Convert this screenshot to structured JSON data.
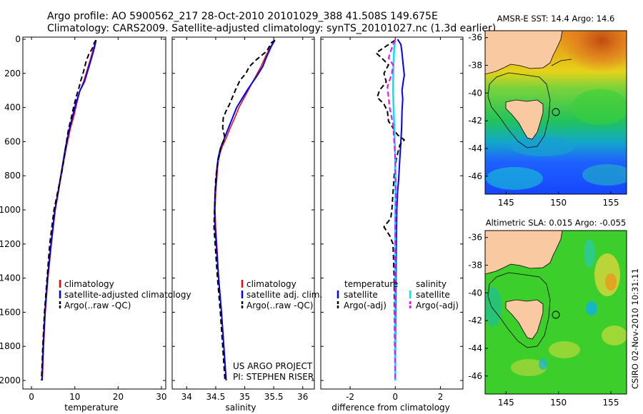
{
  "header": {
    "line1": "Argo profile: AO 5900562_217 28-Oct-2010 20101029_388 41.508S 149.675E",
    "line2": "Climatology: CARS2009. Satellite-adjusted climatology: synTS_20101027.nc (1.3d earlier)"
  },
  "colors": {
    "climatology": "#ff0000",
    "satellite": "#0000ff",
    "argo": "#000000",
    "sal_satellite": "#00e5ff",
    "sal_argo": "#ff00ff",
    "land": "#f9c9a2"
  },
  "chart_data": [
    {
      "type": "line",
      "name": "temperature-panel",
      "xlabel": "temperature",
      "ylabel": "",
      "xlim": [
        -2,
        31
      ],
      "ylim": [
        2050,
        0
      ],
      "xticks": [
        "0",
        "10",
        "20",
        "30"
      ],
      "yticks": [
        "0",
        "200",
        "400",
        "600",
        "800",
        "1000",
        "1200",
        "1400",
        "1600",
        "1800",
        "2000"
      ],
      "legend": [
        "climatology",
        "satellite-adjusted climatology",
        "Argo(..raw -QC)"
      ],
      "series": [
        {
          "name": "climatology",
          "points": [
            [
              14.8,
              5
            ],
            [
              14.6,
              30
            ],
            [
              14.0,
              80
            ],
            [
              13.2,
              150
            ],
            [
              12.6,
              200
            ],
            [
              12.0,
              250
            ],
            [
              11.2,
              300
            ],
            [
              10.4,
              380
            ],
            [
              9.8,
              450
            ],
            [
              9.0,
              520
            ],
            [
              8.0,
              640
            ],
            [
              7.0,
              780
            ],
            [
              6.2,
              900
            ],
            [
              5.5,
              1000
            ],
            [
              4.6,
              1200
            ],
            [
              3.8,
              1400
            ],
            [
              3.2,
              1600
            ],
            [
              2.8,
              1800
            ],
            [
              2.5,
              2000
            ]
          ]
        },
        {
          "name": "satellite",
          "points": [
            [
              14.9,
              5
            ],
            [
              14.7,
              30
            ],
            [
              14.2,
              80
            ],
            [
              13.4,
              150
            ],
            [
              12.8,
              200
            ],
            [
              12.2,
              250
            ],
            [
              11.2,
              300
            ],
            [
              10.2,
              380
            ],
            [
              9.5,
              450
            ],
            [
              8.8,
              520
            ],
            [
              7.8,
              640
            ],
            [
              6.9,
              780
            ],
            [
              6.1,
              900
            ],
            [
              5.4,
              1000
            ],
            [
              4.5,
              1200
            ],
            [
              3.7,
              1400
            ],
            [
              3.1,
              1600
            ],
            [
              2.7,
              1800
            ],
            [
              2.4,
              2000
            ]
          ]
        },
        {
          "name": "argo",
          "points": [
            [
              14.9,
              5
            ],
            [
              14.5,
              20
            ],
            [
              14.3,
              40
            ],
            [
              13.9,
              60
            ],
            [
              13.2,
              90
            ],
            [
              12.6,
              130
            ],
            [
              12.2,
              170
            ],
            [
              11.8,
              210
            ],
            [
              11.4,
              240
            ],
            [
              11.0,
              280
            ],
            [
              10.3,
              340
            ],
            [
              9.7,
              400
            ],
            [
              9.1,
              470
            ],
            [
              8.6,
              520
            ],
            [
              8.2,
              580
            ],
            [
              7.9,
              640
            ],
            [
              7.0,
              780
            ],
            [
              6.0,
              900
            ],
            [
              5.2,
              1000
            ],
            [
              4.2,
              1200
            ],
            [
              3.6,
              1400
            ],
            [
              3.0,
              1600
            ],
            [
              2.6,
              1800
            ],
            [
              2.3,
              2000
            ]
          ]
        }
      ]
    },
    {
      "type": "line",
      "name": "salinity-panel",
      "xlabel": "salinity",
      "xlim": [
        33.75,
        36.2
      ],
      "ylim": [
        2050,
        0
      ],
      "xticks": [
        "34",
        "34.5",
        "35",
        "35.5",
        "36"
      ],
      "legend": [
        "climatology",
        "satellite adj. clim.",
        "Argo(..raw -QC)"
      ],
      "annotation": [
        "US ARGO PROJECT",
        "PI: STEPHEN RISER"
      ],
      "series": [
        {
          "name": "climatology",
          "points": [
            [
              35.52,
              5
            ],
            [
              35.45,
              40
            ],
            [
              35.36,
              100
            ],
            [
              35.28,
              160
            ],
            [
              35.2,
              210
            ],
            [
              35.12,
              260
            ],
            [
              35.06,
              300
            ],
            [
              34.98,
              350
            ],
            [
              34.9,
              400
            ],
            [
              34.83,
              460
            ],
            [
              34.75,
              520
            ],
            [
              34.68,
              580
            ],
            [
              34.6,
              640
            ],
            [
              34.55,
              700
            ],
            [
              34.53,
              760
            ],
            [
              34.52,
              820
            ],
            [
              34.5,
              900
            ],
            [
              34.49,
              1000
            ],
            [
              34.5,
              1100
            ],
            [
              34.52,
              1200
            ],
            [
              34.55,
              1400
            ],
            [
              34.6,
              1600
            ],
            [
              34.64,
              1800
            ],
            [
              34.68,
              2000
            ]
          ]
        },
        {
          "name": "satellite",
          "points": [
            [
              35.52,
              5
            ],
            [
              35.46,
              40
            ],
            [
              35.38,
              100
            ],
            [
              35.31,
              160
            ],
            [
              35.22,
              210
            ],
            [
              35.12,
              260
            ],
            [
              35.04,
              300
            ],
            [
              34.95,
              350
            ],
            [
              34.86,
              400
            ],
            [
              34.79,
              460
            ],
            [
              34.72,
              520
            ],
            [
              34.65,
              580
            ],
            [
              34.58,
              640
            ],
            [
              34.54,
              700
            ],
            [
              34.52,
              760
            ],
            [
              34.51,
              820
            ],
            [
              34.49,
              900
            ],
            [
              34.48,
              1000
            ],
            [
              34.49,
              1100
            ],
            [
              34.51,
              1200
            ],
            [
              34.55,
              1400
            ],
            [
              34.6,
              1600
            ],
            [
              34.64,
              1800
            ],
            [
              34.68,
              2000
            ]
          ]
        },
        {
          "name": "argo",
          "points": [
            [
              35.52,
              5
            ],
            [
              35.46,
              20
            ],
            [
              35.42,
              45
            ],
            [
              35.38,
              70
            ],
            [
              35.2,
              120
            ],
            [
              35.08,
              160
            ],
            [
              35.02,
              200
            ],
            [
              34.92,
              240
            ],
            [
              34.85,
              290
            ],
            [
              34.8,
              330
            ],
            [
              34.74,
              380
            ],
            [
              34.68,
              420
            ],
            [
              34.63,
              460
            ],
            [
              34.62,
              520
            ],
            [
              34.66,
              580
            ],
            [
              34.6,
              620
            ],
            [
              34.55,
              700
            ],
            [
              34.52,
              760
            ],
            [
              34.5,
              820
            ],
            [
              34.49,
              900
            ],
            [
              34.48,
              1000
            ],
            [
              34.47,
              1100
            ],
            [
              34.49,
              1200
            ],
            [
              34.53,
              1400
            ],
            [
              34.58,
              1600
            ],
            [
              34.62,
              1800
            ],
            [
              34.66,
              2000
            ]
          ]
        }
      ]
    },
    {
      "type": "line",
      "name": "difference-panel",
      "xlabel": "difference from climatology",
      "xlim": [
        -3.3,
        3.0
      ],
      "ylim": [
        2050,
        0
      ],
      "xticks": [
        "-2",
        "0",
        "2"
      ],
      "legend_left_title": "temperature",
      "legend_left": [
        "satellite",
        "Argo(-adj)"
      ],
      "legend_right_title": "salinity",
      "legend_right": [
        "satellite",
        "Argo(-adj)"
      ],
      "series": [
        {
          "name": "temperature satellite",
          "points": [
            [
              0.1,
              0
            ],
            [
              0.25,
              30
            ],
            [
              0.3,
              80
            ],
            [
              0.35,
              150
            ],
            [
              0.4,
              210
            ],
            [
              0.35,
              250
            ],
            [
              0.3,
              300
            ],
            [
              0.33,
              350
            ],
            [
              0.3,
              420
            ],
            [
              0.28,
              520
            ],
            [
              0.25,
              600
            ],
            [
              0.2,
              700
            ],
            [
              0.15,
              820
            ],
            [
              0.1,
              900
            ],
            [
              0.07,
              1000
            ],
            [
              0.05,
              1200
            ],
            [
              0.03,
              1400
            ],
            [
              0.02,
              1600
            ],
            [
              0.01,
              1800
            ],
            [
              0.0,
              2000
            ]
          ]
        },
        {
          "name": "temperature argo",
          "points": [
            [
              0.0,
              5
            ],
            [
              -0.4,
              40
            ],
            [
              -0.85,
              80
            ],
            [
              -0.6,
              110
            ],
            [
              -0.3,
              150
            ],
            [
              -0.5,
              200
            ],
            [
              -0.4,
              250
            ],
            [
              -0.7,
              300
            ],
            [
              -0.8,
              340
            ],
            [
              -0.5,
              380
            ],
            [
              -0.35,
              420
            ],
            [
              -0.3,
              480
            ],
            [
              0.1,
              560
            ],
            [
              0.4,
              590
            ],
            [
              0.2,
              620
            ],
            [
              0.05,
              700
            ],
            [
              -0.05,
              800
            ],
            [
              -0.1,
              900
            ],
            [
              -0.15,
              1000
            ],
            [
              -0.2,
              1050
            ],
            [
              -0.5,
              1100
            ],
            [
              -0.25,
              1150
            ],
            [
              -0.1,
              1200
            ],
            [
              -0.05,
              1400
            ],
            [
              -0.03,
              1600
            ],
            [
              -0.02,
              1800
            ],
            [
              0.0,
              2000
            ]
          ]
        },
        {
          "name": "salinity satellite",
          "points": [
            [
              0.0,
              5
            ],
            [
              -0.05,
              50
            ],
            [
              -0.08,
              150
            ],
            [
              -0.1,
              300
            ],
            [
              -0.05,
              500
            ],
            [
              0.0,
              700
            ],
            [
              0.01,
              900
            ],
            [
              0.0,
              1100
            ],
            [
              0.0,
              1400
            ],
            [
              0.0,
              1700
            ],
            [
              0.0,
              2000
            ]
          ]
        },
        {
          "name": "salinity argo",
          "points": [
            [
              0.0,
              5
            ],
            [
              -0.1,
              30
            ],
            [
              -0.2,
              70
            ],
            [
              -0.3,
              110
            ],
            [
              -0.1,
              150
            ],
            [
              -0.15,
              200
            ],
            [
              -0.35,
              280
            ],
            [
              -0.3,
              340
            ],
            [
              -0.25,
              400
            ],
            [
              -0.1,
              500
            ],
            [
              -0.05,
              600
            ],
            [
              0.0,
              700
            ],
            [
              0.02,
              900
            ],
            [
              0.0,
              1100
            ],
            [
              0.0,
              1400
            ],
            [
              0.0,
              1700
            ],
            [
              0.0,
              2000
            ]
          ]
        }
      ]
    },
    {
      "type": "heatmap",
      "name": "amsr-sst-map",
      "title": "AMSR-E SST: 14.4  Argo: 14.6",
      "xticks": [
        "145",
        "150",
        "155"
      ],
      "yticks": [
        "-36",
        "-38",
        "-40",
        "-42",
        "-44",
        "-46"
      ],
      "xlim": [
        143,
        156.5
      ],
      "ylim": [
        -47.3,
        -35.5
      ],
      "marker": [
        149.675,
        -41.508
      ]
    },
    {
      "type": "heatmap",
      "name": "altimetric-sla-map",
      "title": "Altimetric SLA: 0.015  Argo: -0.055",
      "xticks": [
        "145",
        "150",
        "155"
      ],
      "yticks": [
        "-36",
        "-38",
        "-40",
        "-42",
        "-44",
        "-46"
      ],
      "xlim": [
        143,
        156.5
      ],
      "ylim": [
        -47.3,
        -35.5
      ],
      "marker": [
        149.675,
        -41.508
      ]
    }
  ],
  "footer": {
    "stamp": "CSIRO 02-Nov-2010 10:31:11"
  }
}
